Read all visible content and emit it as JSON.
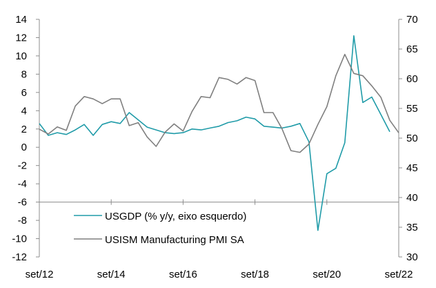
{
  "chart_data": {
    "type": "line",
    "title": "",
    "xlabel": "",
    "ylabel_left": "",
    "ylabel_right": "",
    "grid": false,
    "legend_position": "bottom-left inside",
    "left_axis": {
      "ylim": [
        -12,
        14
      ],
      "ticks": [
        14,
        12,
        10,
        8,
        6,
        4,
        2,
        0,
        -2,
        -4,
        -6,
        -8,
        -10,
        -12
      ]
    },
    "right_axis": {
      "ylim": [
        30,
        70
      ],
      "ticks": [
        70,
        65,
        60,
        55,
        50,
        45,
        40,
        35,
        30
      ]
    },
    "x_tick_labels": [
      "set/12",
      "set/14",
      "set/16",
      "set/18",
      "set/20",
      "set/22"
    ],
    "x_range": [
      "2012-09",
      "2022-09"
    ],
    "series": [
      {
        "name": "USGDP (% y/y, eixo esquerdo)",
        "axis": "left",
        "color": "#1f9ba8",
        "x": [
          "2012-09",
          "2012-12",
          "2013-03",
          "2013-06",
          "2013-09",
          "2013-12",
          "2014-03",
          "2014-06",
          "2014-09",
          "2014-12",
          "2015-03",
          "2015-06",
          "2015-09",
          "2015-12",
          "2016-03",
          "2016-06",
          "2016-09",
          "2016-12",
          "2017-03",
          "2017-06",
          "2017-09",
          "2017-12",
          "2018-03",
          "2018-06",
          "2018-09",
          "2018-12",
          "2019-03",
          "2019-06",
          "2019-09",
          "2019-12",
          "2020-03",
          "2020-06",
          "2020-09",
          "2020-12",
          "2021-03",
          "2021-06",
          "2021-09",
          "2021-12",
          "2022-03",
          "2022-06",
          "2022-09"
        ],
        "values": [
          2.6,
          1.3,
          1.6,
          1.4,
          1.9,
          2.5,
          1.3,
          2.5,
          2.8,
          2.6,
          3.8,
          3.0,
          2.2,
          1.9,
          1.6,
          1.5,
          1.6,
          2.0,
          1.9,
          2.1,
          2.3,
          2.7,
          2.9,
          3.3,
          3.1,
          2.3,
          2.2,
          2.1,
          2.3,
          2.6,
          0.6,
          -9.1,
          -2.9,
          -2.3,
          0.5,
          12.2,
          4.9,
          5.5,
          3.6,
          1.7,
          null
        ]
      },
      {
        "name": "USISM Manufacturing PMI SA",
        "axis": "right",
        "color": "#7f7f7f",
        "x": [
          "2012-09",
          "2012-12",
          "2013-03",
          "2013-06",
          "2013-09",
          "2013-12",
          "2014-03",
          "2014-06",
          "2014-09",
          "2014-12",
          "2015-03",
          "2015-06",
          "2015-09",
          "2015-12",
          "2016-03",
          "2016-06",
          "2016-09",
          "2016-12",
          "2017-03",
          "2017-06",
          "2017-09",
          "2017-12",
          "2018-03",
          "2018-06",
          "2018-09",
          "2018-12",
          "2019-03",
          "2019-06",
          "2019-09",
          "2019-12",
          "2020-03",
          "2020-06",
          "2020-09",
          "2020-12",
          "2021-03",
          "2021-06",
          "2021-09",
          "2021-12",
          "2022-03",
          "2022-06",
          "2022-09"
        ],
        "values": [
          51.5,
          50.7,
          51.9,
          51.3,
          55.4,
          57.0,
          56.6,
          55.8,
          56.6,
          56.6,
          52.1,
          52.6,
          50.2,
          48.6,
          51.0,
          52.4,
          51.2,
          54.5,
          57.0,
          56.8,
          60.2,
          59.9,
          59.1,
          60.2,
          59.7,
          54.3,
          54.3,
          51.6,
          47.9,
          47.6,
          49.0,
          52.3,
          55.3,
          60.5,
          64.1,
          60.9,
          60.5,
          58.8,
          56.9,
          53.0,
          50.9
        ]
      }
    ]
  }
}
